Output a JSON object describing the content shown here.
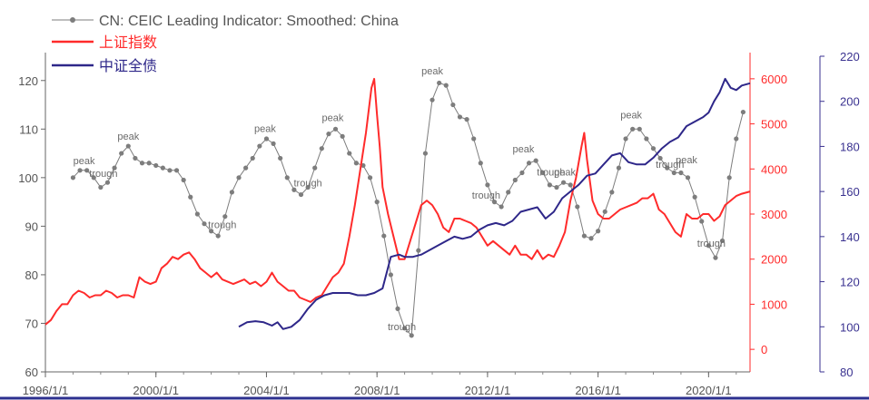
{
  "chart_data": {
    "type": "line",
    "legend": {
      "placement": "top-left",
      "entries": [
        {
          "name": "CN: CEIC Leading Indicator: Smoothed: China",
          "color": "#7d7d7d",
          "marker": "dot"
        },
        {
          "name": "上证指数",
          "color": "#ff2b2b",
          "marker": "none"
        },
        {
          "name": "中证全债",
          "color": "#2e2789",
          "marker": "none"
        }
      ]
    },
    "x_axis": {
      "min": 1996.0,
      "max": 2021.5,
      "ticks": [
        1996,
        2000,
        2004,
        2008,
        2012,
        2016,
        2020
      ],
      "tick_labels": [
        "1996/1/1",
        "2000/1/1",
        "2004/1/1",
        "2008/1/1",
        "2012/1/1",
        "2016/1/1",
        "2020/1/1"
      ]
    },
    "y_left": {
      "min": 60,
      "max": 125,
      "ticks": [
        60,
        70,
        80,
        90,
        100,
        110,
        120
      ],
      "color": "#555555"
    },
    "y_right1": {
      "min": -500,
      "max": 6500,
      "ticks": [
        0,
        1000,
        2000,
        3000,
        4000,
        5000,
        6000
      ],
      "color": "#ff2b2b"
    },
    "y_right2": {
      "min": 80,
      "max": 220,
      "ticks": [
        80,
        100,
        120,
        140,
        160,
        180,
        200,
        220
      ],
      "color": "#3a3290"
    },
    "series": [
      {
        "name": "CN: CEIC Leading Indicator: Smoothed: China",
        "axis": "left",
        "color": "#7d7d7d",
        "x": [
          1997.0,
          1997.25,
          1997.5,
          1997.75,
          1998.0,
          1998.25,
          1998.5,
          1998.75,
          1999.0,
          1999.25,
          1999.5,
          1999.75,
          2000.0,
          2000.25,
          2000.5,
          2000.75,
          2001.0,
          2001.25,
          2001.5,
          2001.75,
          2002.0,
          2002.25,
          2002.5,
          2002.75,
          2003.0,
          2003.25,
          2003.5,
          2003.75,
          2004.0,
          2004.25,
          2004.5,
          2004.75,
          2005.0,
          2005.25,
          2005.5,
          2005.75,
          2006.0,
          2006.25,
          2006.5,
          2006.75,
          2007.0,
          2007.25,
          2007.5,
          2007.75,
          2008.0,
          2008.25,
          2008.5,
          2008.75,
          2009.0,
          2009.25,
          2009.5,
          2009.75,
          2010.0,
          2010.25,
          2010.5,
          2010.75,
          2011.0,
          2011.25,
          2011.5,
          2011.75,
          2012.0,
          2012.25,
          2012.5,
          2012.75,
          2013.0,
          2013.25,
          2013.5,
          2013.75,
          2014.0,
          2014.25,
          2014.5,
          2014.75,
          2015.0,
          2015.25,
          2015.5,
          2015.75,
          2016.0,
          2016.25,
          2016.5,
          2016.75,
          2017.0,
          2017.25,
          2017.5,
          2017.75,
          2018.0,
          2018.25,
          2018.5,
          2018.75,
          2019.0,
          2019.25,
          2019.5,
          2019.75,
          2020.0,
          2020.25,
          2020.5,
          2020.75,
          2021.0,
          2021.25
        ],
        "values": [
          100,
          101.5,
          101.5,
          100,
          98,
          99,
          102,
          105,
          106.5,
          104,
          103,
          103,
          102.5,
          102,
          101.5,
          101.5,
          99.5,
          96,
          92.5,
          90.5,
          89,
          88,
          92,
          97,
          100,
          102,
          104,
          106.5,
          108,
          107,
          104,
          100,
          97.5,
          96.5,
          98,
          102,
          106,
          109,
          110,
          108.5,
          105,
          103,
          102.5,
          100,
          95,
          88,
          80,
          73,
          69,
          67.5,
          85,
          105,
          116,
          119.5,
          119,
          115,
          112.5,
          112,
          108,
          103,
          98.5,
          95,
          94,
          97,
          99.5,
          101,
          103,
          103.5,
          101,
          98.5,
          98,
          99,
          98.5,
          94,
          88,
          87.5,
          89,
          93,
          97,
          102,
          108,
          110,
          110,
          108,
          106,
          104,
          102,
          101,
          101,
          100,
          96,
          91,
          86,
          83.5,
          87,
          100,
          108,
          113.5
        ]
      },
      {
        "name": "上证指数",
        "axis": "right1",
        "color": "#ff2b2b",
        "x": [
          1996.0,
          1996.2,
          1996.4,
          1996.6,
          1996.8,
          1997.0,
          1997.2,
          1997.4,
          1997.6,
          1997.8,
          1998.0,
          1998.2,
          1998.4,
          1998.6,
          1998.8,
          1999.0,
          1999.2,
          1999.4,
          1999.6,
          1999.8,
          2000.0,
          2000.2,
          2000.4,
          2000.6,
          2000.8,
          2001.0,
          2001.2,
          2001.4,
          2001.6,
          2001.8,
          2002.0,
          2002.2,
          2002.4,
          2002.6,
          2002.8,
          2003.0,
          2003.2,
          2003.4,
          2003.6,
          2003.8,
          2004.0,
          2004.2,
          2004.4,
          2004.6,
          2004.8,
          2005.0,
          2005.2,
          2005.4,
          2005.6,
          2005.8,
          2006.0,
          2006.2,
          2006.4,
          2006.6,
          2006.8,
          2007.0,
          2007.2,
          2007.4,
          2007.6,
          2007.8,
          2007.9,
          2008.0,
          2008.1,
          2008.2,
          2008.4,
          2008.6,
          2008.8,
          2009.0,
          2009.2,
          2009.4,
          2009.6,
          2009.8,
          2010.0,
          2010.2,
          2010.4,
          2010.6,
          2010.8,
          2011.0,
          2011.2,
          2011.4,
          2011.6,
          2011.8,
          2012.0,
          2012.2,
          2012.4,
          2012.6,
          2012.8,
          2013.0,
          2013.2,
          2013.4,
          2013.6,
          2013.8,
          2014.0,
          2014.2,
          2014.4,
          2014.6,
          2014.8,
          2015.0,
          2015.2,
          2015.4,
          2015.5,
          2015.6,
          2015.8,
          2016.0,
          2016.2,
          2016.4,
          2016.6,
          2016.8,
          2017.0,
          2017.2,
          2017.4,
          2017.6,
          2017.8,
          2018.0,
          2018.2,
          2018.4,
          2018.6,
          2018.8,
          2019.0,
          2019.2,
          2019.4,
          2019.6,
          2019.8,
          2020.0,
          2020.2,
          2020.4,
          2020.6,
          2020.8,
          2021.0,
          2021.2,
          2021.5
        ],
        "values": [
          550,
          650,
          850,
          1000,
          1000,
          1200,
          1300,
          1250,
          1150,
          1200,
          1200,
          1300,
          1250,
          1150,
          1200,
          1200,
          1150,
          1600,
          1500,
          1450,
          1500,
          1800,
          1900,
          2050,
          2000,
          2100,
          2150,
          2000,
          1800,
          1700,
          1600,
          1700,
          1550,
          1500,
          1450,
          1500,
          1550,
          1450,
          1500,
          1400,
          1500,
          1700,
          1500,
          1400,
          1300,
          1300,
          1150,
          1100,
          1050,
          1150,
          1200,
          1400,
          1600,
          1700,
          1900,
          2500,
          3200,
          4000,
          4800,
          5800,
          6000,
          5200,
          4500,
          3600,
          3000,
          2500,
          2000,
          2000,
          2400,
          2800,
          3200,
          3300,
          3200,
          3000,
          2700,
          2600,
          2900,
          2900,
          2850,
          2800,
          2700,
          2500,
          2300,
          2400,
          2300,
          2200,
          2100,
          2300,
          2100,
          2100,
          2000,
          2200,
          2000,
          2100,
          2050,
          2300,
          2600,
          3300,
          3800,
          4500,
          4800,
          4200,
          3300,
          3000,
          2900,
          2900,
          3000,
          3100,
          3150,
          3200,
          3250,
          3350,
          3350,
          3450,
          3100,
          3000,
          2800,
          2600,
          2500,
          3000,
          2900,
          2900,
          3000,
          3000,
          2850,
          2950,
          3200,
          3300,
          3400,
          3450,
          3500
        ]
      },
      {
        "name": "中证全债",
        "axis": "right2",
        "color": "#2e2789",
        "x": [
          2003.0,
          2003.3,
          2003.6,
          2003.9,
          2004.2,
          2004.4,
          2004.6,
          2004.9,
          2005.2,
          2005.5,
          2005.8,
          2006.1,
          2006.4,
          2006.7,
          2007.0,
          2007.3,
          2007.6,
          2007.9,
          2008.2,
          2008.5,
          2008.8,
          2009.0,
          2009.3,
          2009.6,
          2009.9,
          2010.2,
          2010.5,
          2010.8,
          2011.1,
          2011.4,
          2011.7,
          2012.0,
          2012.3,
          2012.6,
          2012.9,
          2013.2,
          2013.5,
          2013.8,
          2014.1,
          2014.4,
          2014.7,
          2015.0,
          2015.3,
          2015.6,
          2015.9,
          2016.2,
          2016.5,
          2016.8,
          2017.1,
          2017.4,
          2017.7,
          2018.0,
          2018.3,
          2018.6,
          2018.9,
          2019.2,
          2019.5,
          2019.8,
          2020.0,
          2020.2,
          2020.4,
          2020.6,
          2020.8,
          2021.0,
          2021.2,
          2021.5
        ],
        "values": [
          100,
          102,
          102.5,
          102,
          100.5,
          102,
          99,
          100,
          103,
          108,
          112,
          114,
          115,
          115,
          115,
          114,
          114,
          115,
          117,
          131,
          132,
          131,
          131,
          132,
          134,
          136,
          138,
          140,
          139,
          140,
          143,
          145,
          146,
          145,
          147,
          151,
          152,
          153,
          148,
          151,
          157,
          160,
          163,
          167,
          168,
          172,
          176,
          177,
          173,
          172,
          172,
          175,
          179,
          182,
          184,
          189,
          191,
          193,
          195,
          200,
          204,
          210,
          206,
          205,
          207,
          208
        ]
      }
    ],
    "annotations": [
      {
        "text": "peak",
        "x": 1997.4,
        "y": 102.8
      },
      {
        "text": "trough",
        "x": 1998.1,
        "y": 100.2
      },
      {
        "text": "peak",
        "x": 1999.0,
        "y": 107.8
      },
      {
        "text": "trough",
        "x": 2002.4,
        "y": 89.6
      },
      {
        "text": "peak",
        "x": 2003.95,
        "y": 109.4
      },
      {
        "text": "trough",
        "x": 2005.5,
        "y": 98.2
      },
      {
        "text": "peak",
        "x": 2006.4,
        "y": 111.6
      },
      {
        "text": "trough",
        "x": 2008.9,
        "y": 68.6
      },
      {
        "text": "peak",
        "x": 2010.0,
        "y": 121.3
      },
      {
        "text": "trough",
        "x": 2011.95,
        "y": 95.7
      },
      {
        "text": "peak",
        "x": 2013.3,
        "y": 105.2
      },
      {
        "text": "trough",
        "x": 2014.3,
        "y": 100.4
      },
      {
        "text": "peak",
        "x": 2014.8,
        "y": 100.4
      },
      {
        "text": "peak",
        "x": 2017.2,
        "y": 112.2
      },
      {
        "text": "trough",
        "x": 2018.6,
        "y": 102.0
      },
      {
        "text": "peak",
        "x": 2019.2,
        "y": 103.0
      },
      {
        "text": "trough",
        "x": 2020.1,
        "y": 85.8
      }
    ]
  }
}
